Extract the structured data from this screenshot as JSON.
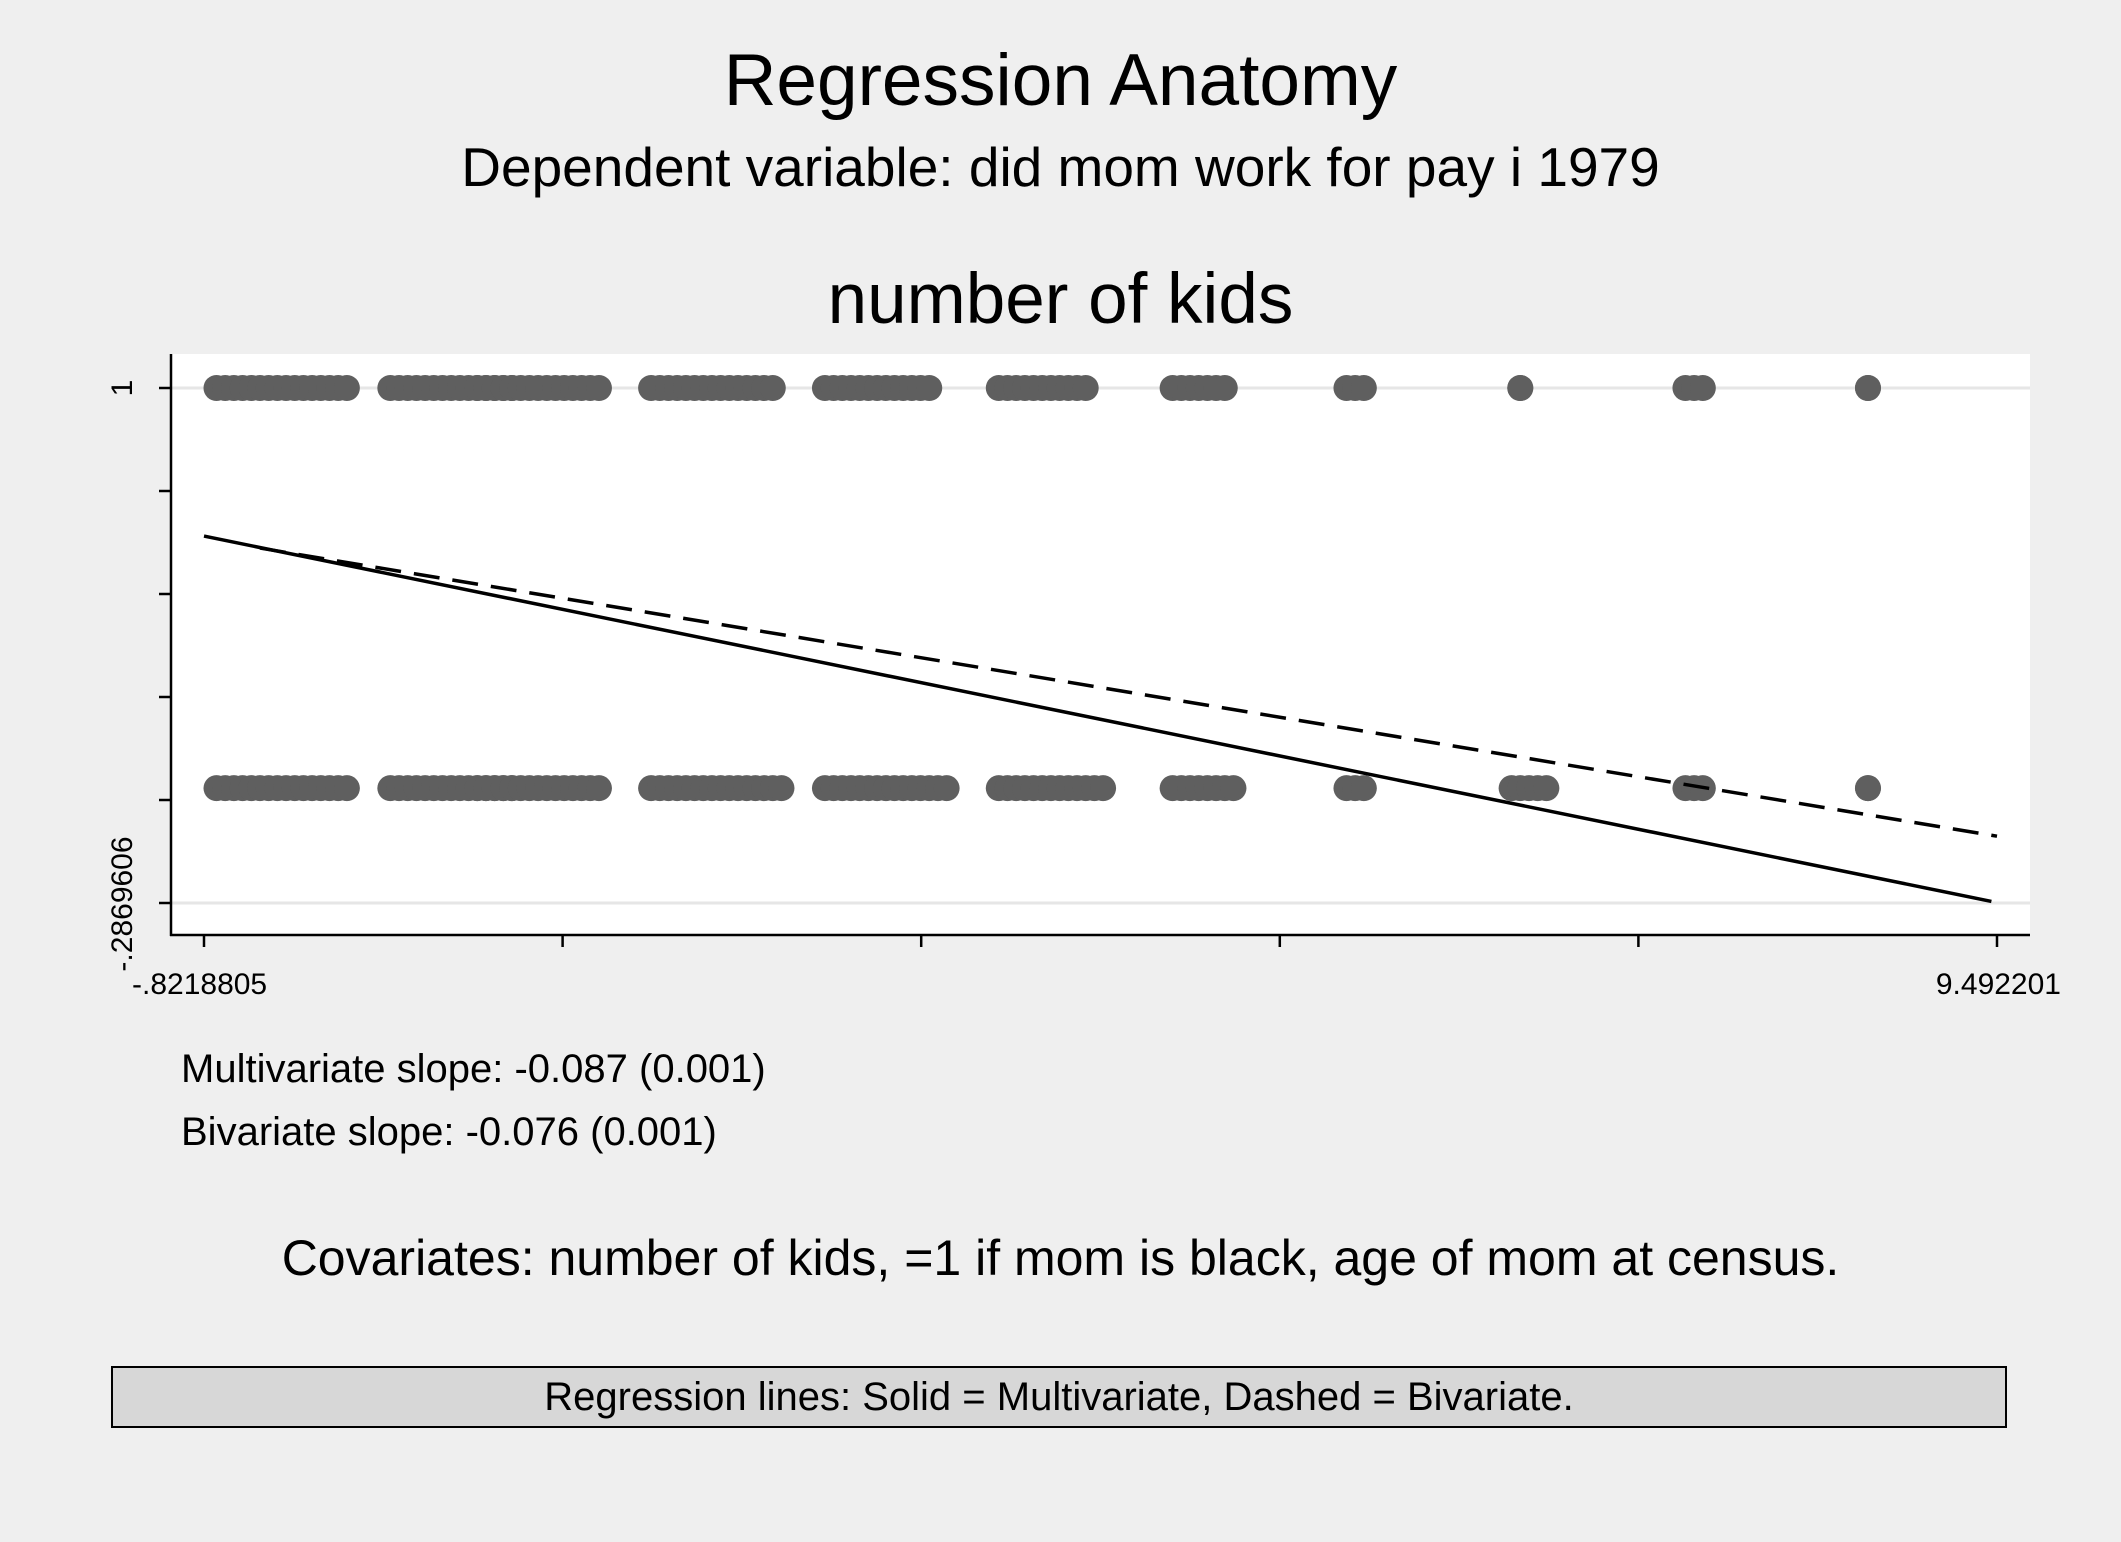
{
  "chart_data": {
    "type": "scatter",
    "title": "Regression Anatomy",
    "subtitle": "Dependent variable: did mom work for pay i 1979",
    "panel_title": "number of kids",
    "xlabel": "",
    "ylabel": "",
    "xlim": [
      -0.8218805,
      9.492201
    ],
    "ylim": [
      -0.2869606,
      1
    ],
    "x_tick_labels": [
      "-.8218805",
      "9.492201"
    ],
    "y_tick_labels": [
      "-.2869606",
      "1"
    ],
    "grid": "horizontal",
    "point_clusters": [
      {
        "y": 1,
        "ranges": [
          [
            -0.75,
            0.0
          ],
          [
            0.25,
            0.95
          ],
          [
            0.75,
            1.45
          ],
          [
            1.75,
            2.45
          ],
          [
            2.75,
            3.35
          ],
          [
            3.75,
            4.25
          ],
          [
            4.75,
            5.05
          ],
          [
            5.75,
            5.85
          ],
          [
            6.75,
            6.75
          ],
          [
            7.7,
            7.8
          ],
          [
            8.75,
            8.75
          ]
        ]
      },
      {
        "y": 0,
        "ranges": [
          [
            -0.75,
            0.0
          ],
          [
            0.25,
            0.95
          ],
          [
            0.75,
            1.45
          ],
          [
            1.75,
            2.5
          ],
          [
            2.75,
            3.45
          ],
          [
            3.75,
            4.35
          ],
          [
            4.75,
            5.1
          ],
          [
            5.75,
            5.85
          ],
          [
            6.7,
            6.9
          ],
          [
            7.7,
            7.8
          ],
          [
            8.75,
            8.75
          ]
        ]
      }
    ],
    "series": [
      {
        "name": "Multivariate",
        "style": "solid",
        "x": [
          -0.8218805,
          9.46
        ],
        "y": [
          0.63,
          -0.283
        ]
      },
      {
        "name": "Bivariate",
        "style": "dashed",
        "x": [
          -0.5,
          9.492201
        ],
        "y": [
          0.6,
          -0.12
        ]
      }
    ],
    "slope_multivariate": "Multivariate slope: -0.087 (0.001)",
    "slope_bivariate": "Bivariate slope: -0.076 (0.001)",
    "covariates_note": "Covariates: number of kids, =1 if mom is black, age of mom at census.",
    "legend_note": "Regression lines: Solid = Multivariate, Dashed = Bivariate.",
    "colors": {
      "points": "#5f5f5f",
      "background": "#efefef",
      "plot_background": "#ffffff",
      "gridline": "#e6e6e6",
      "lines": "#000000"
    }
  }
}
